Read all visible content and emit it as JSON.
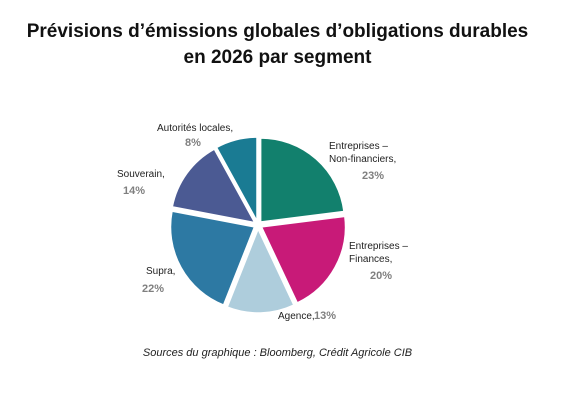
{
  "title": {
    "line1": "Prévisions d’émissions globales d’obligations durables",
    "line2": "en 2026 par segment"
  },
  "source": "Sources du graphique : Bloomberg, Crédit Agricole CIB",
  "chart_data": {
    "type": "pie",
    "title": "Prévisions d’émissions globales d’obligations durables en 2026 par segment",
    "slices": [
      {
        "name_lines": [
          "Entreprises –",
          "Non-financiers,"
        ],
        "label": "Entreprises – Non-financiers",
        "value": 23,
        "pct_text": "23%",
        "color": "#12806d"
      },
      {
        "name_lines": [
          "Entreprises –",
          "Finances,"
        ],
        "label": "Entreprises – Finances",
        "value": 20,
        "pct_text": "20%",
        "color": "#c81a78"
      },
      {
        "name_lines": [
          "Agence,"
        ],
        "label": "Agence",
        "value": 13,
        "pct_text": "13%",
        "color": "#aecddc"
      },
      {
        "name_lines": [
          "Supra,"
        ],
        "label": "Supra",
        "value": 22,
        "pct_text": "22%",
        "color": "#2d79a3"
      },
      {
        "name_lines": [
          "Souverain,"
        ],
        "label": "Souverain",
        "value": 14,
        "pct_text": "14%",
        "color": "#4b5a93"
      },
      {
        "name_lines": [
          "Autorités locales,"
        ],
        "label": "Autorités locales",
        "value": 8,
        "pct_text": "8%",
        "color": "#1a7b93"
      }
    ]
  }
}
